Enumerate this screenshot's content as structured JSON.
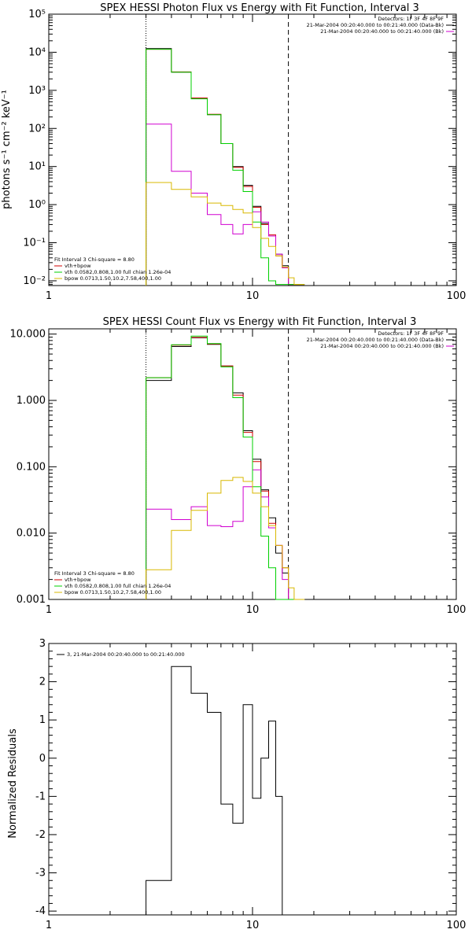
{
  "chart_data": [
    {
      "type": "line",
      "step": "histogram",
      "title": "SPEX HESSI Photon Flux vs Energy with Fit Function, Interval 3",
      "ylabel": "photons s⁻¹ cm⁻² keV⁻¹",
      "xlabel": "",
      "xscale": "log",
      "yscale": "log",
      "xlim": [
        1,
        100
      ],
      "ylim": [
        0.0075,
        100000
      ],
      "xticks": [
        "1",
        "10",
        "100"
      ],
      "yticks": [
        "10⁻²",
        "10⁻¹",
        "10⁰",
        "10¹",
        "10²",
        "10³",
        "10⁴",
        "10⁵"
      ],
      "ytick_values": [
        0.01,
        0.1,
        1,
        10,
        100,
        1000,
        10000,
        100000
      ],
      "energy_bins": [
        3,
        4,
        5,
        6,
        7,
        8,
        9,
        10,
        11,
        12,
        13,
        14,
        15,
        16,
        17,
        18
      ],
      "vlines": [
        {
          "x": 3,
          "style": "dotted"
        },
        {
          "x": 15,
          "style": "dashed"
        }
      ],
      "legend_top_right": [
        {
          "text": "Detectors: 1F 3F 4F 8F 9F",
          "color": ""
        },
        {
          "text": "21-Mar-2004 00:20:40.000 to 00:21:40.000 (Data-Bk)",
          "color": "#000000"
        },
        {
          "text": "21-Mar-2004 00:20:40.000 to 00:21:40.000 (Bk)",
          "color": "#d000d0"
        }
      ],
      "legend_bottom_left": [
        {
          "text": "Fit Interval 3   Chi-square = 8.80",
          "color": ""
        },
        {
          "text": "vth+bpow",
          "color": "#d00000"
        },
        {
          "text": "vth 0.0582,0.808,1.00  full chian 1.26e-04",
          "color": "#00d000"
        },
        {
          "text": "bpow 0.0713,1.50,10.2,7.58,400,1.00",
          "color": "#d8b800"
        }
      ],
      "series": [
        {
          "name": "Data-Bk",
          "color": "#000000",
          "values": [
            12500,
            3000,
            620,
            230,
            40,
            10,
            3.2,
            0.9,
            0.32,
            0.15,
            0.05,
            0.025,
            0.008,
            0.008,
            0.008
          ]
        },
        {
          "name": "vth+bpow",
          "color": "#d00000",
          "values": [
            12000,
            3050,
            630,
            235,
            40,
            9.5,
            3.0,
            0.85,
            0.3,
            0.16,
            0.045,
            0.022,
            0.008,
            0.008,
            0.008
          ]
        },
        {
          "name": "Bk",
          "color": "#d000d0",
          "values": [
            130,
            7.5,
            2.0,
            0.55,
            0.3,
            0.17,
            0.3,
            0.65,
            0.35,
            0.15,
            0.05,
            0.022,
            0.008,
            0.008,
            0.008
          ]
        },
        {
          "name": "vth",
          "color": "#00d000",
          "values": [
            12000,
            3000,
            600,
            230,
            40,
            8,
            2.2,
            0.35,
            0.04,
            0.01,
            0.008,
            0.008,
            0.008,
            0.008,
            0.008
          ]
        },
        {
          "name": "bpow",
          "color": "#d8b800",
          "values": [
            3.8,
            2.5,
            1.6,
            1.1,
            0.95,
            0.75,
            0.6,
            0.25,
            0.13,
            0.08,
            0.045,
            0.023,
            0.012,
            0.008,
            0.008
          ]
        }
      ]
    },
    {
      "type": "line",
      "step": "histogram",
      "title": "SPEX HESSI Count Flux vs Energy with Fit Function, Interval 3",
      "ylabel": "",
      "xlabel": "",
      "xscale": "log",
      "yscale": "log",
      "xlim": [
        1,
        100
      ],
      "ylim": [
        0.001,
        12
      ],
      "xticks": [
        "1",
        "10",
        "100"
      ],
      "yticks": [
        "0.001",
        "0.010",
        "0.100",
        "1.000",
        "10.000"
      ],
      "ytick_values": [
        0.001,
        0.01,
        0.1,
        1,
        10
      ],
      "energy_bins": [
        3,
        4,
        5,
        6,
        7,
        8,
        9,
        10,
        11,
        12,
        13,
        14,
        15,
        16,
        17,
        18
      ],
      "vlines": [
        {
          "x": 3,
          "style": "dotted"
        },
        {
          "x": 15,
          "style": "dashed"
        }
      ],
      "legend_top_right": [
        {
          "text": "Detectors: 1F 3F 4F 8F 9F",
          "color": ""
        },
        {
          "text": "21-Mar-2004 00:20:40.000 to 00:21:40.000 (Data-Bk)",
          "color": "#000000"
        },
        {
          "text": "21-Mar-2004 00:20:40.000 to 00:21:40.000 (Bk)",
          "color": "#d000d0"
        }
      ],
      "legend_bottom_left": [
        {
          "text": "Fit Interval 3   Chi-square = 8.80",
          "color": ""
        },
        {
          "text": "vth+bpow",
          "color": "#d00000"
        },
        {
          "text": "vth 0.0582,0.808,1.00  full chian 1.26e-04",
          "color": "#00d000"
        },
        {
          "text": "bpow 0.0713,1.50,10.2,7.58,400,1.00",
          "color": "#d8b800"
        }
      ],
      "series": [
        {
          "name": "Data-Bk",
          "color": "#000000",
          "values": [
            2.0,
            6.5,
            8.8,
            7.0,
            3.3,
            1.3,
            0.35,
            0.13,
            0.045,
            0.017,
            0.005,
            0.0025,
            0.001,
            0.001,
            0.001
          ]
        },
        {
          "name": "vth+bpow",
          "color": "#d00000",
          "values": [
            2.2,
            6.8,
            8.9,
            7.1,
            3.3,
            1.2,
            0.33,
            0.12,
            0.043,
            0.014,
            0.0065,
            0.003,
            0.001,
            0.001,
            0.001
          ]
        },
        {
          "name": "Bk",
          "color": "#d000d0",
          "values": [
            0.023,
            0.016,
            0.025,
            0.013,
            0.0125,
            0.015,
            0.05,
            0.09,
            0.035,
            0.012,
            0.0065,
            0.002,
            0.001,
            0.001,
            0.001
          ]
        },
        {
          "name": "vth",
          "color": "#00d000",
          "values": [
            2.2,
            6.9,
            9.3,
            7.2,
            3.2,
            1.1,
            0.28,
            0.05,
            0.009,
            0.003,
            0.001,
            0.001,
            0.001,
            0.001,
            0.001
          ]
        },
        {
          "name": "bpow",
          "color": "#d8b800",
          "values": [
            0.0028,
            0.011,
            0.022,
            0.04,
            0.062,
            0.069,
            0.06,
            0.04,
            0.025,
            0.013,
            0.0065,
            0.003,
            0.0015,
            0.001,
            0.001
          ]
        }
      ]
    },
    {
      "type": "line",
      "step": "histogram",
      "title": "",
      "ylabel": "Normalized Residuals",
      "xlabel": "",
      "xscale": "log",
      "yscale": "linear",
      "xlim": [
        1,
        100
      ],
      "ylim": [
        -4.1,
        3.0
      ],
      "xticks": [
        "1",
        "10",
        "100"
      ],
      "yticks": [
        "-4",
        "-3",
        "-2",
        "-1",
        "0",
        "1",
        "2",
        "3"
      ],
      "ytick_values": [
        -4,
        -3,
        -2,
        -1,
        0,
        1,
        2,
        3
      ],
      "energy_bins": [
        3,
        4,
        5,
        6,
        7,
        8,
        9,
        10,
        11,
        12,
        13,
        14,
        15
      ],
      "vlines": [],
      "legend_top_left": [
        {
          "text": "3, 21-Mar-2004 00:20:40.000 to 00:21:40.000",
          "color": "#000000"
        }
      ],
      "series": [
        {
          "name": "",
          "color": "#000000",
          "values": [
            -3.2,
            2.4,
            1.7,
            1.2,
            -1.2,
            -1.7,
            1.4,
            -1.05,
            0.0,
            0.97,
            -1.0,
            -4.1
          ]
        }
      ]
    }
  ]
}
